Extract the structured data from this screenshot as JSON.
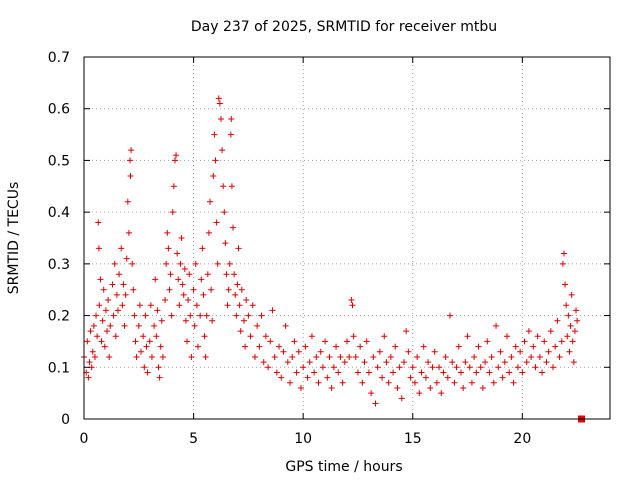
{
  "chart_data": {
    "type": "scatter",
    "title": "Day 237 of 2025, SRMTID for receiver mtbu",
    "xlabel": "GPS time / hours",
    "ylabel": "SRMTID / TECUs",
    "xlim": [
      0,
      24
    ],
    "ylim": [
      0,
      0.7
    ],
    "xticks": [
      0,
      5,
      10,
      15,
      20
    ],
    "xtick_labels": [
      "0",
      "5",
      "10",
      "15",
      "20"
    ],
    "yticks": [
      0,
      0.1,
      0.2,
      0.3,
      0.4,
      0.5,
      0.6,
      0.7
    ],
    "ytick_labels": [
      "0",
      "0.1",
      "0.2",
      "0.3",
      "0.4",
      "0.5",
      "0.6",
      "0.7"
    ],
    "grid": true,
    "marker": "plus",
    "color": "#e00000",
    "series": [
      {
        "name": "SRMTID",
        "points": [
          [
            0.0,
            0.12
          ],
          [
            0.1,
            0.09
          ],
          [
            0.15,
            0.15
          ],
          [
            0.2,
            0.08
          ],
          [
            0.25,
            0.11
          ],
          [
            0.3,
            0.17
          ],
          [
            0.35,
            0.1
          ],
          [
            0.4,
            0.13
          ],
          [
            0.45,
            0.18
          ],
          [
            0.5,
            0.12
          ],
          [
            0.55,
            0.2
          ],
          [
            0.6,
            0.16
          ],
          [
            0.65,
            0.38
          ],
          [
            0.68,
            0.33
          ],
          [
            0.7,
            0.22
          ],
          [
            0.75,
            0.27
          ],
          [
            0.8,
            0.15
          ],
          [
            0.85,
            0.19
          ],
          [
            0.9,
            0.25
          ],
          [
            0.95,
            0.14
          ],
          [
            1.0,
            0.21
          ],
          [
            1.05,
            0.17
          ],
          [
            1.1,
            0.23
          ],
          [
            1.15,
            0.12
          ],
          [
            1.2,
            0.18
          ],
          [
            1.3,
            0.26
          ],
          [
            1.35,
            0.2
          ],
          [
            1.4,
            0.3
          ],
          [
            1.45,
            0.16
          ],
          [
            1.5,
            0.24
          ],
          [
            1.55,
            0.21
          ],
          [
            1.6,
            0.28
          ],
          [
            1.7,
            0.33
          ],
          [
            1.75,
            0.22
          ],
          [
            1.8,
            0.26
          ],
          [
            1.85,
            0.18
          ],
          [
            1.9,
            0.24
          ],
          [
            1.95,
            0.31
          ],
          [
            2.0,
            0.42
          ],
          [
            2.05,
            0.36
          ],
          [
            2.1,
            0.5
          ],
          [
            2.12,
            0.47
          ],
          [
            2.15,
            0.52
          ],
          [
            2.2,
            0.3
          ],
          [
            2.25,
            0.25
          ],
          [
            2.3,
            0.2
          ],
          [
            2.35,
            0.15
          ],
          [
            2.4,
            0.12
          ],
          [
            2.5,
            0.18
          ],
          [
            2.55,
            0.22
          ],
          [
            2.6,
            0.13
          ],
          [
            2.7,
            0.16
          ],
          [
            2.75,
            0.1
          ],
          [
            2.8,
            0.2
          ],
          [
            2.85,
            0.14
          ],
          [
            2.9,
            0.09
          ],
          [
            3.0,
            0.15
          ],
          [
            3.05,
            0.22
          ],
          [
            3.1,
            0.12
          ],
          [
            3.2,
            0.18
          ],
          [
            3.25,
            0.27
          ],
          [
            3.3,
            0.16
          ],
          [
            3.35,
            0.21
          ],
          [
            3.4,
            0.1
          ],
          [
            3.45,
            0.08
          ],
          [
            3.5,
            0.14
          ],
          [
            3.55,
            0.19
          ],
          [
            3.6,
            0.12
          ],
          [
            3.7,
            0.23
          ],
          [
            3.75,
            0.3
          ],
          [
            3.8,
            0.36
          ],
          [
            3.85,
            0.33
          ],
          [
            3.9,
            0.25
          ],
          [
            3.95,
            0.28
          ],
          [
            4.0,
            0.2
          ],
          [
            4.05,
            0.4
          ],
          [
            4.1,
            0.45
          ],
          [
            4.15,
            0.5
          ],
          [
            4.2,
            0.51
          ],
          [
            4.25,
            0.32
          ],
          [
            4.3,
            0.27
          ],
          [
            4.35,
            0.22
          ],
          [
            4.4,
            0.3
          ],
          [
            4.45,
            0.35
          ],
          [
            4.5,
            0.26
          ],
          [
            4.55,
            0.24
          ],
          [
            4.6,
            0.29
          ],
          [
            4.65,
            0.19
          ],
          [
            4.7,
            0.15
          ],
          [
            4.75,
            0.23
          ],
          [
            4.8,
            0.28
          ],
          [
            4.85,
            0.2
          ],
          [
            4.9,
            0.12
          ],
          [
            5.0,
            0.25
          ],
          [
            5.05,
            0.18
          ],
          [
            5.1,
            0.3
          ],
          [
            5.15,
            0.22
          ],
          [
            5.2,
            0.14
          ],
          [
            5.3,
            0.2
          ],
          [
            5.35,
            0.27
          ],
          [
            5.4,
            0.33
          ],
          [
            5.45,
            0.24
          ],
          [
            5.5,
            0.16
          ],
          [
            5.55,
            0.12
          ],
          [
            5.6,
            0.2
          ],
          [
            5.65,
            0.28
          ],
          [
            5.7,
            0.36
          ],
          [
            5.75,
            0.42
          ],
          [
            5.8,
            0.25
          ],
          [
            5.85,
            0.19
          ],
          [
            5.9,
            0.47
          ],
          [
            5.95,
            0.55
          ],
          [
            6.0,
            0.5
          ],
          [
            6.05,
            0.38
          ],
          [
            6.1,
            0.3
          ],
          [
            6.15,
            0.62
          ],
          [
            6.2,
            0.61
          ],
          [
            6.25,
            0.58
          ],
          [
            6.3,
            0.52
          ],
          [
            6.35,
            0.45
          ],
          [
            6.4,
            0.4
          ],
          [
            6.45,
            0.34
          ],
          [
            6.5,
            0.28
          ],
          [
            6.55,
            0.22
          ],
          [
            6.6,
            0.25
          ],
          [
            6.65,
            0.3
          ],
          [
            6.7,
            0.55
          ],
          [
            6.72,
            0.58
          ],
          [
            6.75,
            0.45
          ],
          [
            6.8,
            0.37
          ],
          [
            6.85,
            0.28
          ],
          [
            6.9,
            0.24
          ],
          [
            6.95,
            0.2
          ],
          [
            7.0,
            0.26
          ],
          [
            7.05,
            0.33
          ],
          [
            7.1,
            0.22
          ],
          [
            7.15,
            0.17
          ],
          [
            7.2,
            0.25
          ],
          [
            7.3,
            0.19
          ],
          [
            7.35,
            0.14
          ],
          [
            7.4,
            0.23
          ],
          [
            7.5,
            0.2
          ],
          [
            7.6,
            0.16
          ],
          [
            7.7,
            0.22
          ],
          [
            7.8,
            0.12
          ],
          [
            7.9,
            0.18
          ],
          [
            8.0,
            0.14
          ],
          [
            8.1,
            0.2
          ],
          [
            8.2,
            0.11
          ],
          [
            8.3,
            0.16
          ],
          [
            8.4,
            0.1
          ],
          [
            8.5,
            0.15
          ],
          [
            8.6,
            0.21
          ],
          [
            8.7,
            0.12
          ],
          [
            8.8,
            0.09
          ],
          [
            8.9,
            0.14
          ],
          [
            9.0,
            0.08
          ],
          [
            9.1,
            0.13
          ],
          [
            9.2,
            0.18
          ],
          [
            9.3,
            0.11
          ],
          [
            9.4,
            0.07
          ],
          [
            9.5,
            0.12
          ],
          [
            9.6,
            0.15
          ],
          [
            9.7,
            0.09
          ],
          [
            9.8,
            0.13
          ],
          [
            9.9,
            0.06
          ],
          [
            10.0,
            0.1
          ],
          [
            10.1,
            0.14
          ],
          [
            10.2,
            0.08
          ],
          [
            10.3,
            0.11
          ],
          [
            10.4,
            0.16
          ],
          [
            10.5,
            0.09
          ],
          [
            10.6,
            0.12
          ],
          [
            10.7,
            0.07
          ],
          [
            10.8,
            0.13
          ],
          [
            10.9,
            0.1
          ],
          [
            11.0,
            0.15
          ],
          [
            11.1,
            0.08
          ],
          [
            11.2,
            0.12
          ],
          [
            11.3,
            0.06
          ],
          [
            11.4,
            0.1
          ],
          [
            11.5,
            0.14
          ],
          [
            11.6,
            0.09
          ],
          [
            11.7,
            0.12
          ],
          [
            11.8,
            0.07
          ],
          [
            11.9,
            0.11
          ],
          [
            12.0,
            0.15
          ],
          [
            12.1,
            0.12
          ],
          [
            12.2,
            0.23
          ],
          [
            12.25,
            0.22
          ],
          [
            12.3,
            0.16
          ],
          [
            12.4,
            0.12
          ],
          [
            12.5,
            0.09
          ],
          [
            12.6,
            0.14
          ],
          [
            12.7,
            0.07
          ],
          [
            12.8,
            0.11
          ],
          [
            12.9,
            0.15
          ],
          [
            13.0,
            0.09
          ],
          [
            13.1,
            0.05
          ],
          [
            13.2,
            0.12
          ],
          [
            13.3,
            0.03
          ],
          [
            13.4,
            0.1
          ],
          [
            13.5,
            0.13
          ],
          [
            13.6,
            0.08
          ],
          [
            13.7,
            0.16
          ],
          [
            13.8,
            0.11
          ],
          [
            13.9,
            0.07
          ],
          [
            14.0,
            0.12
          ],
          [
            14.1,
            0.09
          ],
          [
            14.2,
            0.14
          ],
          [
            14.3,
            0.06
          ],
          [
            14.4,
            0.1
          ],
          [
            14.5,
            0.04
          ],
          [
            14.6,
            0.11
          ],
          [
            14.7,
            0.17
          ],
          [
            14.8,
            0.13
          ],
          [
            14.9,
            0.08
          ],
          [
            15.0,
            0.1
          ],
          [
            15.1,
            0.07
          ],
          [
            15.2,
            0.12
          ],
          [
            15.3,
            0.05
          ],
          [
            15.4,
            0.09
          ],
          [
            15.5,
            0.14
          ],
          [
            15.6,
            0.08
          ],
          [
            15.7,
            0.11
          ],
          [
            15.8,
            0.06
          ],
          [
            15.9,
            0.1
          ],
          [
            16.0,
            0.13
          ],
          [
            16.1,
            0.07
          ],
          [
            16.2,
            0.1
          ],
          [
            16.3,
            0.05
          ],
          [
            16.4,
            0.09
          ],
          [
            16.5,
            0.12
          ],
          [
            16.6,
            0.08
          ],
          [
            16.7,
            0.2
          ],
          [
            16.8,
            0.11
          ],
          [
            16.9,
            0.07
          ],
          [
            17.0,
            0.1
          ],
          [
            17.1,
            0.14
          ],
          [
            17.2,
            0.09
          ],
          [
            17.3,
            0.06
          ],
          [
            17.4,
            0.11
          ],
          [
            17.5,
            0.16
          ],
          [
            17.6,
            0.1
          ],
          [
            17.7,
            0.07
          ],
          [
            17.8,
            0.12
          ],
          [
            17.9,
            0.09
          ],
          [
            18.0,
            0.14
          ],
          [
            18.1,
            0.1
          ],
          [
            18.2,
            0.06
          ],
          [
            18.3,
            0.11
          ],
          [
            18.4,
            0.15
          ],
          [
            18.5,
            0.09
          ],
          [
            18.6,
            0.12
          ],
          [
            18.7,
            0.07
          ],
          [
            18.8,
            0.18
          ],
          [
            18.9,
            0.1
          ],
          [
            19.0,
            0.13
          ],
          [
            19.1,
            0.08
          ],
          [
            19.2,
            0.11
          ],
          [
            19.3,
            0.16
          ],
          [
            19.4,
            0.09
          ],
          [
            19.5,
            0.12
          ],
          [
            19.6,
            0.07
          ],
          [
            19.7,
            0.14
          ],
          [
            19.8,
            0.1
          ],
          [
            19.9,
            0.13
          ],
          [
            20.0,
            0.09
          ],
          [
            20.1,
            0.15
          ],
          [
            20.2,
            0.11
          ],
          [
            20.3,
            0.17
          ],
          [
            20.4,
            0.12
          ],
          [
            20.5,
            0.14
          ],
          [
            20.6,
            0.1
          ],
          [
            20.7,
            0.16
          ],
          [
            20.8,
            0.12
          ],
          [
            20.9,
            0.09
          ],
          [
            21.0,
            0.15
          ],
          [
            21.1,
            0.11
          ],
          [
            21.2,
            0.13
          ],
          [
            21.3,
            0.17
          ],
          [
            21.4,
            0.1
          ],
          [
            21.5,
            0.14
          ],
          [
            21.6,
            0.19
          ],
          [
            21.7,
            0.12
          ],
          [
            21.8,
            0.15
          ],
          [
            21.85,
            0.3
          ],
          [
            21.9,
            0.32
          ],
          [
            21.95,
            0.26
          ],
          [
            22.0,
            0.22
          ],
          [
            22.05,
            0.16
          ],
          [
            22.1,
            0.2
          ],
          [
            22.15,
            0.13
          ],
          [
            22.2,
            0.18
          ],
          [
            22.25,
            0.24
          ],
          [
            22.3,
            0.15
          ],
          [
            22.35,
            0.11
          ],
          [
            22.4,
            0.17
          ],
          [
            22.45,
            0.21
          ],
          [
            22.5,
            0.19
          ]
        ]
      }
    ],
    "final_marker": {
      "x": 22.7,
      "y": 0.0,
      "shape": "square"
    }
  }
}
